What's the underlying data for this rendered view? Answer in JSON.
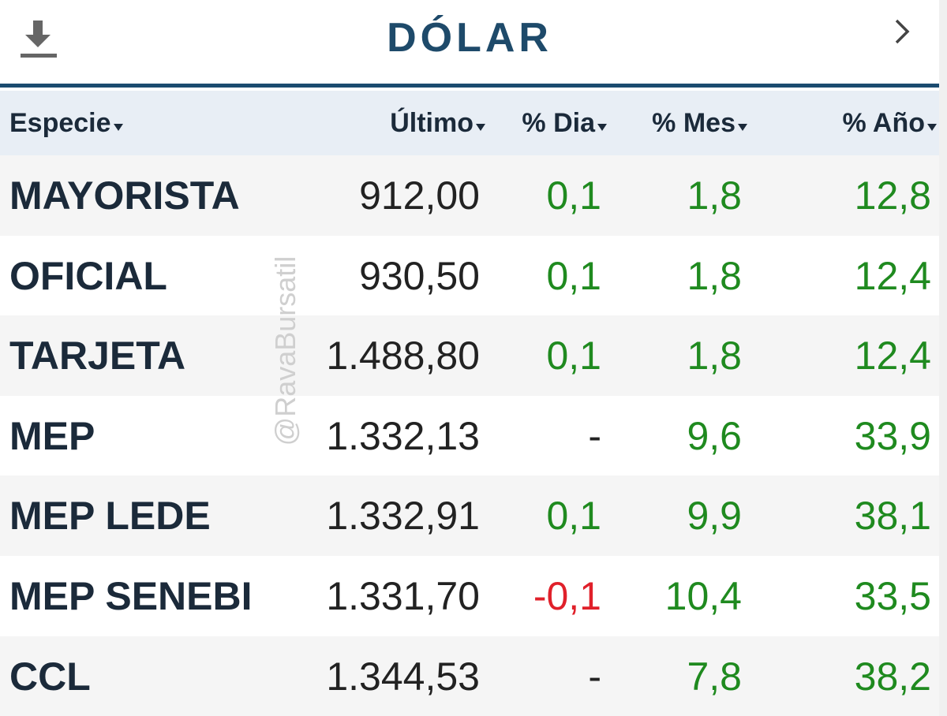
{
  "header": {
    "title": "DÓLAR"
  },
  "watermark": "@RavaBursatil",
  "table": {
    "columns": [
      "Especie",
      "Último",
      "% Dia",
      "% Mes",
      "% Año"
    ],
    "rows": [
      [
        "MAYORISTA",
        "912,00",
        "0,1",
        "1,8",
        "12,8"
      ],
      [
        "OFICIAL",
        "930,50",
        "0,1",
        "1,8",
        "12,4"
      ],
      [
        "TARJETA",
        "1.488,80",
        "0,1",
        "1,8",
        "12,4"
      ],
      [
        "MEP",
        "1.332,13",
        "-",
        "9,6",
        "33,9"
      ],
      [
        "MEP LEDE",
        "1.332,91",
        "0,1",
        "9,9",
        "38,1"
      ],
      [
        "MEP SENEBI",
        "1.331,70",
        "-0,1",
        "10,4",
        "33,5"
      ],
      [
        "CCL",
        "1.344,53",
        "-",
        "7,8",
        "38,2"
      ]
    ]
  }
}
